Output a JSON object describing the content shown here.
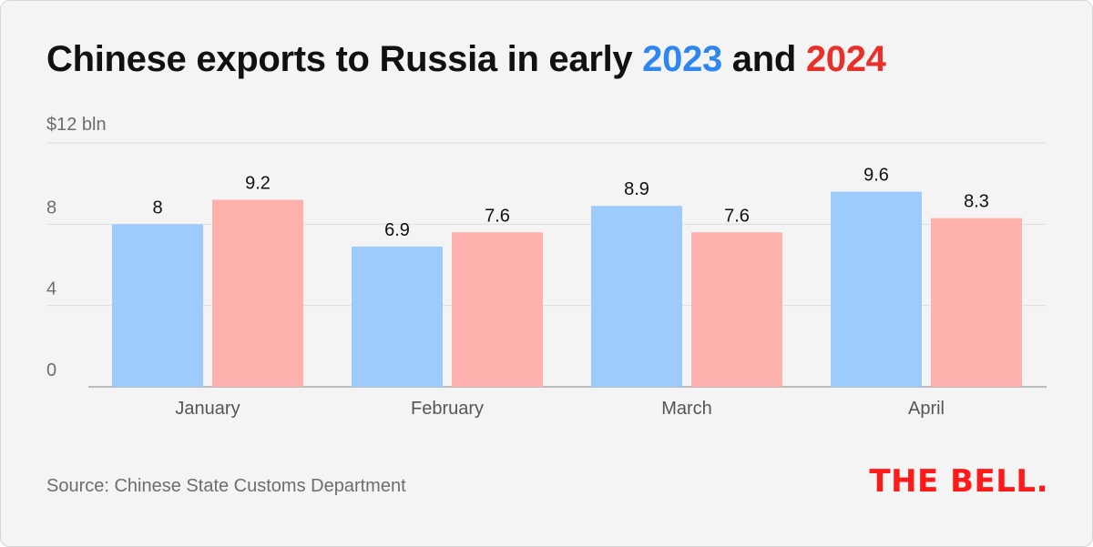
{
  "title": {
    "prefix": "Chinese exports to Russia in early ",
    "year_a": "2023",
    "joiner": " and ",
    "year_b": "2024"
  },
  "source": "Source: Chinese State Customs Department",
  "logo": "THE BELL.",
  "colors": {
    "year_a": "#2e87f0",
    "year_b": "#e8302a",
    "bar_a": "#9ccbfc",
    "bar_b": "#feb1ad"
  },
  "chart_data": {
    "type": "bar",
    "categories": [
      "January",
      "February",
      "March",
      "April"
    ],
    "series": [
      {
        "name": "2023",
        "values": [
          8,
          6.9,
          8.9,
          9.6
        ]
      },
      {
        "name": "2024",
        "values": [
          9.2,
          7.6,
          7.6,
          8.3
        ]
      }
    ],
    "data_labels": [
      [
        "8",
        "6.9",
        "8.9",
        "9.6"
      ],
      [
        "9.2",
        "7.6",
        "7.6",
        "8.3"
      ]
    ],
    "ylabel": "",
    "yunit_label": "$12 bln",
    "yticks": [
      0,
      4,
      8
    ],
    "ytick_labels": [
      "0",
      "4",
      "8"
    ],
    "ylim": [
      0,
      12
    ],
    "grid": true
  }
}
